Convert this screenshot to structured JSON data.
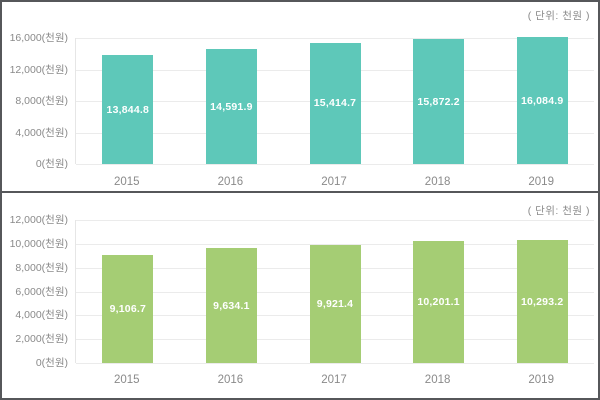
{
  "unit_note": "( 단위: 천원 )",
  "colors": {
    "bar_top": "#5ec8b9",
    "bar_bottom": "#a5cd74",
    "axis_text": "#8a8a8a",
    "grid_line": "#ebebeb",
    "panel_border": "#56575a",
    "value_text": "#ffffff"
  },
  "chart_data": [
    {
      "type": "bar",
      "title": "",
      "unit_label": "( 단위: 천원 )",
      "categories": [
        "2015",
        "2016",
        "2017",
        "2018",
        "2019"
      ],
      "values": [
        13844.8,
        14591.9,
        15414.7,
        15872.2,
        16084.9
      ],
      "value_labels": [
        "13,844.8",
        "14,591.9",
        "15,414.7",
        "15,872.2",
        "16,084.9"
      ],
      "bar_color": "#5ec8b9",
      "xlabel": "",
      "ylabel": "",
      "ylim": [
        0,
        16000
      ],
      "ytick_step": 4000,
      "ytick_labels": [
        "16,000(천원)",
        "12,000(천원)",
        "8,000(천원)",
        "4,000(천원)",
        "0(천원)"
      ],
      "grid": true,
      "legend": "none"
    },
    {
      "type": "bar",
      "title": "",
      "unit_label": "( 단위: 천원 )",
      "categories": [
        "2015",
        "2016",
        "2017",
        "2018",
        "2019"
      ],
      "values": [
        9106.7,
        9634.1,
        9921.4,
        10201.1,
        10293.2
      ],
      "value_labels": [
        "9,106.7",
        "9,634.1",
        "9,921.4",
        "10,201.1",
        "10,293.2"
      ],
      "bar_color": "#a5cd74",
      "xlabel": "",
      "ylabel": "",
      "ylim": [
        0,
        12000
      ],
      "ytick_step": 2000,
      "ytick_labels": [
        "12,000(천원)",
        "10,000(천원)",
        "8,000(천원)",
        "6,000(천원)",
        "4,000(천원)",
        "2,000(천원)",
        "0(천원)"
      ],
      "grid": true,
      "legend": "none"
    }
  ]
}
